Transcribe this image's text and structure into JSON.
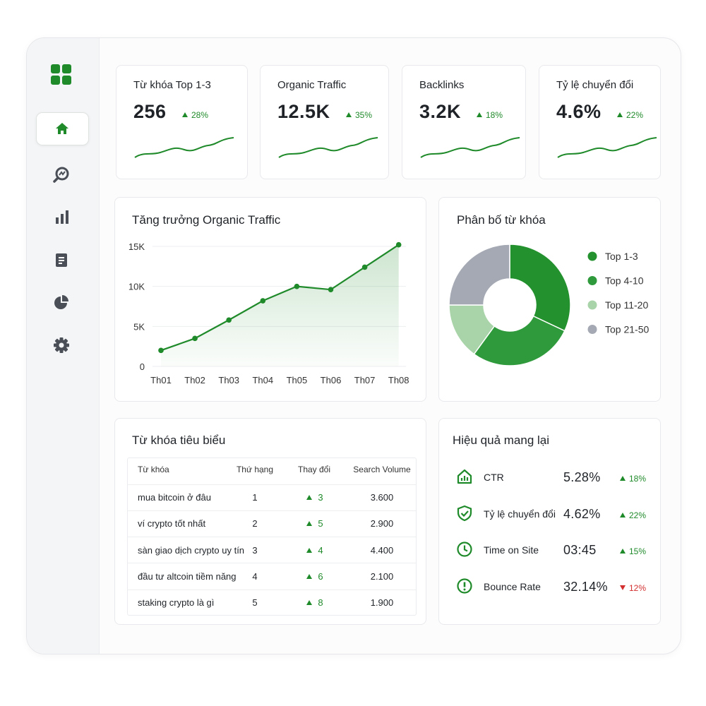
{
  "kpis": [
    {
      "label": "Từ khóa Top 1-3",
      "value": "256",
      "change": "28%",
      "direction": "up"
    },
    {
      "label": "Organic Traffic",
      "value": "12.5K",
      "change": "35%",
      "direction": "up"
    },
    {
      "label": "Backlinks",
      "value": "3.2K",
      "change": "18%",
      "direction": "up"
    },
    {
      "label": "Tỷ lệ chuyển đổi",
      "value": "4.6%",
      "change": "22%",
      "direction": "up"
    }
  ],
  "chart_data": [
    {
      "type": "line",
      "title": "Tăng trưởng Organic Traffic",
      "categories": [
        "Th01",
        "Th02",
        "Th03",
        "Th04",
        "Th05",
        "Th06",
        "Th07",
        "Th08"
      ],
      "values": [
        2000,
        3500,
        5800,
        8200,
        10000,
        9600,
        12400,
        15200
      ],
      "color": "#1f8a2a",
      "ylim": [
        0,
        15500
      ],
      "yticks": [
        {
          "value": 0,
          "label": "0"
        },
        {
          "value": 5000,
          "label": "5K"
        },
        {
          "value": 10000,
          "label": "10K"
        },
        {
          "value": 15000,
          "label": "15K"
        }
      ],
      "grid": true
    },
    {
      "type": "pie",
      "title": "Phân bố từ khóa",
      "categories": [
        "Top 1-3",
        "Top 4-10",
        "Top 11-20",
        "Top 21-50"
      ],
      "values": [
        32,
        28,
        15,
        25
      ],
      "colors": [
        "#24912f",
        "#2e9a3b",
        "#a9d4a9",
        "#a4a9b3"
      ],
      "hole": true,
      "legend": "right"
    }
  ],
  "keywords_table": {
    "title": "Từ khóa tiêu biểu",
    "columns": [
      "Từ khóa",
      "Thứ hạng",
      "Thay đổi",
      "Search Volume"
    ],
    "rows": [
      [
        "mua bitcoin ở đâu",
        "1",
        "3",
        "3.600"
      ],
      [
        "ví crypto tốt nhất",
        "2",
        "5",
        "2.900"
      ],
      [
        "sàn giao dịch crypto uy tín",
        "3",
        "4",
        "4.400"
      ],
      [
        "đầu tư altcoin tiềm năng",
        "4",
        "6",
        "2.100"
      ],
      [
        "staking crypto là gì",
        "5",
        "8",
        "1.900"
      ]
    ],
    "directions": [
      "up",
      "up",
      "up",
      "up",
      "up"
    ]
  },
  "performance": {
    "title": "Hiệu quả mang lại",
    "metrics": [
      {
        "label": "CTR",
        "value": "5.28%",
        "change": "18%",
        "direction": "up"
      },
      {
        "label": "Tỷ lệ chuyển đổi",
        "value": "4.62%",
        "change": "22%",
        "direction": "up"
      },
      {
        "label": "Time on Site",
        "value": "03:45",
        "change": "15%",
        "direction": "up"
      },
      {
        "label": "Bounce Rate",
        "value": "32.14%",
        "change": "12%",
        "direction": "down"
      }
    ]
  }
}
